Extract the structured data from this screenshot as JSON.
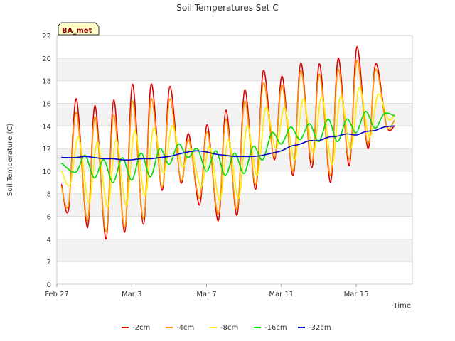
{
  "chart_data": {
    "type": "line",
    "title": "Soil Temperatures Set C",
    "xlabel": "Time",
    "ylabel": "Soil Temperature (C)",
    "badge": "BA_met",
    "ylim": [
      0,
      22
    ],
    "y_ticks": [
      0,
      2,
      4,
      6,
      8,
      10,
      12,
      14,
      16,
      18,
      20,
      22
    ],
    "x_range_days": [
      "Feb 27",
      "Mar 18"
    ],
    "x_ticks": [
      "Feb 27",
      "Mar 3",
      "Mar 7",
      "Mar 11",
      "Mar 15"
    ],
    "grid": "horizontal bands",
    "legend_position": "bottom",
    "series": [
      {
        "name": "-2cm",
        "color": "#dd0000",
        "x": [
          "Feb 27 06:00",
          "Feb 27 15:00",
          "Feb 28 01:00",
          "Feb 28 15:00",
          "Mar 1 01:00",
          "Mar 1 15:00",
          "Mar 2 01:00",
          "Mar 2 15:00",
          "Mar 3 01:00",
          "Mar 3 15:00",
          "Mar 4 01:00",
          "Mar 4 15:00",
          "Mar 5 01:00",
          "Mar 5 15:00",
          "Mar 6 01:00",
          "Mar 6 15:00",
          "Mar 7 01:00",
          "Mar 7 15:00",
          "Mar 8 01:00",
          "Mar 8 15:00",
          "Mar 9 01:00",
          "Mar 9 15:00",
          "Mar 10 01:00",
          "Mar 10 15:00",
          "Mar 11 01:00",
          "Mar 11 15:00",
          "Mar 12 01:00",
          "Mar 12 15:00",
          "Mar 13 01:00",
          "Mar 13 15:00",
          "Mar 14 01:00",
          "Mar 14 15:00",
          "Mar 15 01:00",
          "Mar 15 15:00",
          "Mar 16 01:00",
          "Mar 16 15:00",
          "Mar 17 01:00"
        ],
        "y": [
          8.8,
          6.6,
          16.4,
          5.0,
          15.8,
          4.0,
          16.3,
          4.6,
          17.7,
          5.3,
          17.7,
          8.3,
          17.5,
          9.0,
          13.3,
          7.0,
          14.1,
          5.6,
          15.4,
          6.1,
          17.2,
          8.4,
          18.9,
          11.0,
          18.4,
          9.6,
          19.6,
          10.3,
          19.5,
          9.0,
          20.0,
          10.5,
          21.0,
          12.0,
          19.5,
          14.0,
          14.0
        ]
      },
      {
        "name": "-4cm",
        "color": "#ff9900",
        "x": [
          "Feb 27 06:00",
          "Feb 27 15:00",
          "Feb 28 01:00",
          "Feb 28 15:00",
          "Mar 1 01:00",
          "Mar 1 15:00",
          "Mar 2 01:00",
          "Mar 2 15:00",
          "Mar 3 01:00",
          "Mar 3 15:00",
          "Mar 4 01:00",
          "Mar 4 15:00",
          "Mar 5 01:00",
          "Mar 5 15:00",
          "Mar 6 01:00",
          "Mar 6 15:00",
          "Mar 7 01:00",
          "Mar 7 15:00",
          "Mar 8 01:00",
          "Mar 8 15:00",
          "Mar 9 01:00",
          "Mar 9 15:00",
          "Mar 10 01:00",
          "Mar 10 15:00",
          "Mar 11 01:00",
          "Mar 11 15:00",
          "Mar 12 01:00",
          "Mar 12 15:00",
          "Mar 13 01:00",
          "Mar 13 15:00",
          "Mar 14 01:00",
          "Mar 14 15:00",
          "Mar 15 01:00",
          "Mar 15 15:00",
          "Mar 16 01:00",
          "Mar 16 15:00",
          "Mar 17 01:00"
        ],
        "y": [
          8.6,
          7.0,
          15.2,
          5.6,
          14.8,
          4.6,
          15.0,
          5.0,
          16.2,
          5.8,
          16.4,
          8.6,
          16.4,
          9.2,
          12.8,
          7.6,
          13.5,
          6.2,
          14.6,
          6.6,
          16.2,
          8.8,
          17.8,
          11.2,
          17.6,
          10.0,
          18.9,
          10.8,
          18.6,
          9.6,
          19.0,
          11.0,
          19.8,
          12.4,
          19.0,
          14.0,
          14.5
        ]
      },
      {
        "name": "-8cm",
        "color": "#ffee00",
        "x": [
          "Feb 27 06:00",
          "Feb 27 17:00",
          "Feb 28 04:00",
          "Feb 28 17:00",
          "Mar 1 04:00",
          "Mar 1 17:00",
          "Mar 2 04:00",
          "Mar 2 17:00",
          "Mar 3 04:00",
          "Mar 3 17:00",
          "Mar 4 04:00",
          "Mar 4 17:00",
          "Mar 5 04:00",
          "Mar 5 17:00",
          "Mar 6 04:00",
          "Mar 6 17:00",
          "Mar 7 04:00",
          "Mar 7 17:00",
          "Mar 8 04:00",
          "Mar 8 17:00",
          "Mar 9 04:00",
          "Mar 9 17:00",
          "Mar 10 04:00",
          "Mar 10 17:00",
          "Mar 11 04:00",
          "Mar 11 17:00",
          "Mar 12 04:00",
          "Mar 12 17:00",
          "Mar 13 04:00",
          "Mar 13 17:00",
          "Mar 14 04:00",
          "Mar 14 17:00",
          "Mar 15 04:00",
          "Mar 15 17:00",
          "Mar 16 04:00",
          "Mar 16 17:00",
          "Mar 17 01:00"
        ],
        "y": [
          10.0,
          8.8,
          13.0,
          7.2,
          12.6,
          6.8,
          12.8,
          7.0,
          13.6,
          7.8,
          13.8,
          9.8,
          14.0,
          10.4,
          12.0,
          8.6,
          12.2,
          7.4,
          12.8,
          7.6,
          14.0,
          9.6,
          15.6,
          12.0,
          15.6,
          11.0,
          16.4,
          11.6,
          16.6,
          10.6,
          16.6,
          12.0,
          17.4,
          13.0,
          16.8,
          14.6,
          15.0
        ]
      },
      {
        "name": "-16cm",
        "color": "#00dd00",
        "x": [
          "Feb 27 06:00",
          "Feb 28 00:00",
          "Feb 28 12:00",
          "Mar 1 00:00",
          "Mar 1 12:00",
          "Mar 2 00:00",
          "Mar 2 12:00",
          "Mar 3 00:00",
          "Mar 3 12:00",
          "Mar 4 00:00",
          "Mar 4 12:00",
          "Mar 5 00:00",
          "Mar 5 12:00",
          "Mar 6 00:00",
          "Mar 6 12:00",
          "Mar 7 00:00",
          "Mar 7 12:00",
          "Mar 8 00:00",
          "Mar 8 12:00",
          "Mar 9 00:00",
          "Mar 9 12:00",
          "Mar 10 00:00",
          "Mar 10 12:00",
          "Mar 11 00:00",
          "Mar 11 12:00",
          "Mar 12 00:00",
          "Mar 12 12:00",
          "Mar 13 00:00",
          "Mar 13 12:00",
          "Mar 14 00:00",
          "Mar 14 12:00",
          "Mar 15 00:00",
          "Mar 15 12:00",
          "Mar 16 00:00",
          "Mar 16 12:00",
          "Mar 17 01:00"
        ],
        "y": [
          10.7,
          9.9,
          11.4,
          9.4,
          11.0,
          9.0,
          11.2,
          9.2,
          11.6,
          9.5,
          12.0,
          10.6,
          12.4,
          11.2,
          12.0,
          10.0,
          11.8,
          9.6,
          11.6,
          9.8,
          12.2,
          11.0,
          13.4,
          12.4,
          13.9,
          12.8,
          14.2,
          12.6,
          14.6,
          12.6,
          14.6,
          13.4,
          15.3,
          13.8,
          15.1,
          14.9
        ]
      },
      {
        "name": "-32cm",
        "color": "#0000cc",
        "x": [
          "Feb 27 06:00",
          "Feb 28 00:00",
          "Feb 28 12:00",
          "Mar 1 00:00",
          "Mar 1 12:00",
          "Mar 2 00:00",
          "Mar 2 12:00",
          "Mar 3 00:00",
          "Mar 3 12:00",
          "Mar 4 00:00",
          "Mar 4 12:00",
          "Mar 5 00:00",
          "Mar 5 12:00",
          "Mar 6 00:00",
          "Mar 6 12:00",
          "Mar 7 00:00",
          "Mar 7 12:00",
          "Mar 8 00:00",
          "Mar 8 12:00",
          "Mar 9 00:00",
          "Mar 9 12:00",
          "Mar 10 00:00",
          "Mar 10 12:00",
          "Mar 11 00:00",
          "Mar 11 12:00",
          "Mar 12 00:00",
          "Mar 12 12:00",
          "Mar 13 00:00",
          "Mar 13 12:00",
          "Mar 14 00:00",
          "Mar 14 12:00",
          "Mar 15 00:00",
          "Mar 15 12:00",
          "Mar 16 00:00",
          "Mar 16 12:00",
          "Mar 17 01:00"
        ],
        "y": [
          11.2,
          11.2,
          11.3,
          11.2,
          11.1,
          11.1,
          11.0,
          11.0,
          11.1,
          11.1,
          11.2,
          11.3,
          11.5,
          11.7,
          11.8,
          11.7,
          11.5,
          11.4,
          11.3,
          11.3,
          11.3,
          11.4,
          11.6,
          11.8,
          12.2,
          12.4,
          12.7,
          12.7,
          13.0,
          13.1,
          13.3,
          13.2,
          13.5,
          13.6,
          13.9,
          14.0
        ]
      }
    ]
  }
}
